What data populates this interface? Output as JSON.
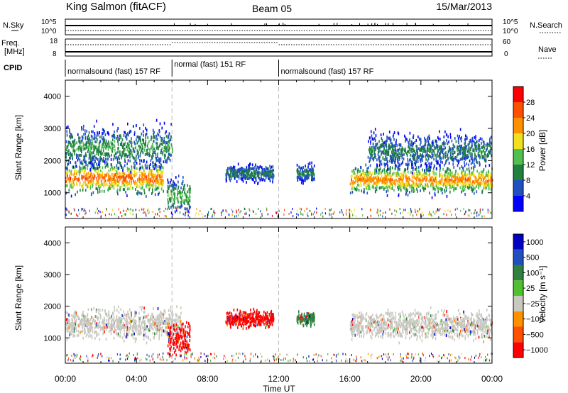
{
  "header": {
    "station": "King Salmon (fitACF)",
    "beam": "Beam 05",
    "date": "15/Mar/2013"
  },
  "param_panel": {
    "nsky_label": "N.Sky",
    "nsearch_label": "N.Search",
    "freq_label": "Freq.",
    "freq_unit": "[MHz]",
    "nave_label": "Nave",
    "cpid_label": "CPID",
    "noise_ticks": [
      "10^5",
      "10^0"
    ],
    "freq_ticks": [
      "18",
      "8"
    ],
    "nave_ticks": [
      "60",
      "0"
    ]
  },
  "cpid_segments": [
    {
      "label": "normalsound (fast) 157 RF",
      "start": "00:00",
      "end": "06:00"
    },
    {
      "label": "normal (fast) 151 RF",
      "start": "06:00",
      "end": "12:00"
    },
    {
      "label": "normalsound (fast) 157 RF",
      "start": "12:00",
      "end": "24:00"
    }
  ],
  "colors": {
    "power": [
      "#0000ff",
      "#2050c0",
      "#208040",
      "#50c050",
      "#f0e020",
      "#ff9000",
      "#ff5000",
      "#ff0000"
    ],
    "velocity": [
      "#ff0000",
      "#ff5000",
      "#ff9000",
      "#c8c8c0",
      "#50c030",
      "#308040",
      "#2050c0",
      "#0000c0"
    ]
  },
  "chart_data": [
    {
      "type": "heatmap",
      "parameter": "Power",
      "ylabel": "Slant Range [km]",
      "xlabel": "Time UT",
      "ylim": [
        200,
        4500
      ],
      "yticks": [
        "1000",
        "2000",
        "3000",
        "4000"
      ],
      "xticks": [
        "00:00",
        "04:00",
        "08:00",
        "12:00",
        "16:00",
        "20:00",
        "00:00"
      ],
      "colorbar": {
        "label": "Power [dB]",
        "ticks": [
          "28",
          "24",
          "20",
          "16",
          "12",
          "8",
          "4"
        ],
        "range": [
          0,
          32
        ]
      },
      "features": [
        {
          "t0": 0.0,
          "t1": 5.5,
          "r_center": 1450,
          "r_width": 450,
          "peak_db": 26
        },
        {
          "t0": 0.0,
          "t1": 6.0,
          "r_center": 2400,
          "r_width": 600,
          "peak_db": 12
        },
        {
          "t0": 5.7,
          "t1": 7.0,
          "r_center": 900,
          "r_width": 500,
          "peak_db": 14
        },
        {
          "t0": 9.0,
          "t1": 11.7,
          "r_center": 1600,
          "r_width": 250,
          "peak_db": 10
        },
        {
          "t0": 13.0,
          "t1": 14.0,
          "r_center": 1600,
          "r_width": 250,
          "peak_db": 10
        },
        {
          "t0": 16.0,
          "t1": 24.0,
          "r_center": 1400,
          "r_width": 400,
          "peak_db": 24
        },
        {
          "t0": 17.0,
          "t1": 24.0,
          "r_center": 2300,
          "r_width": 500,
          "peak_db": 10
        }
      ]
    },
    {
      "type": "heatmap",
      "parameter": "Velocity",
      "ylabel": "Slant Range [km]",
      "xlabel": "Time UT",
      "ylim": [
        200,
        4500
      ],
      "yticks": [
        "1000",
        "2000",
        "3000",
        "4000"
      ],
      "xticks": [
        "00:00",
        "04:00",
        "08:00",
        "12:00",
        "16:00",
        "20:00",
        "00:00"
      ],
      "colorbar": {
        "label": "Velocity [m s⁻¹]",
        "ticks": [
          "1000",
          "500",
          "100",
          "25",
          "−25",
          "−100",
          "−500",
          "−1000"
        ]
      },
      "features": [
        {
          "t0": 0.0,
          "t1": 6.5,
          "r_center": 1450,
          "r_width": 450,
          "velocity": 0
        },
        {
          "t0": 5.7,
          "t1": 7.0,
          "r_center": 1000,
          "r_width": 500,
          "velocity": -500
        },
        {
          "t0": 9.0,
          "t1": 11.7,
          "r_center": 1600,
          "r_width": 250,
          "velocity": -500
        },
        {
          "t0": 13.0,
          "t1": 14.0,
          "r_center": 1600,
          "r_width": 200,
          "velocity": 100
        },
        {
          "t0": 16.0,
          "t1": 24.0,
          "r_center": 1400,
          "r_width": 400,
          "velocity": 0
        }
      ]
    }
  ]
}
